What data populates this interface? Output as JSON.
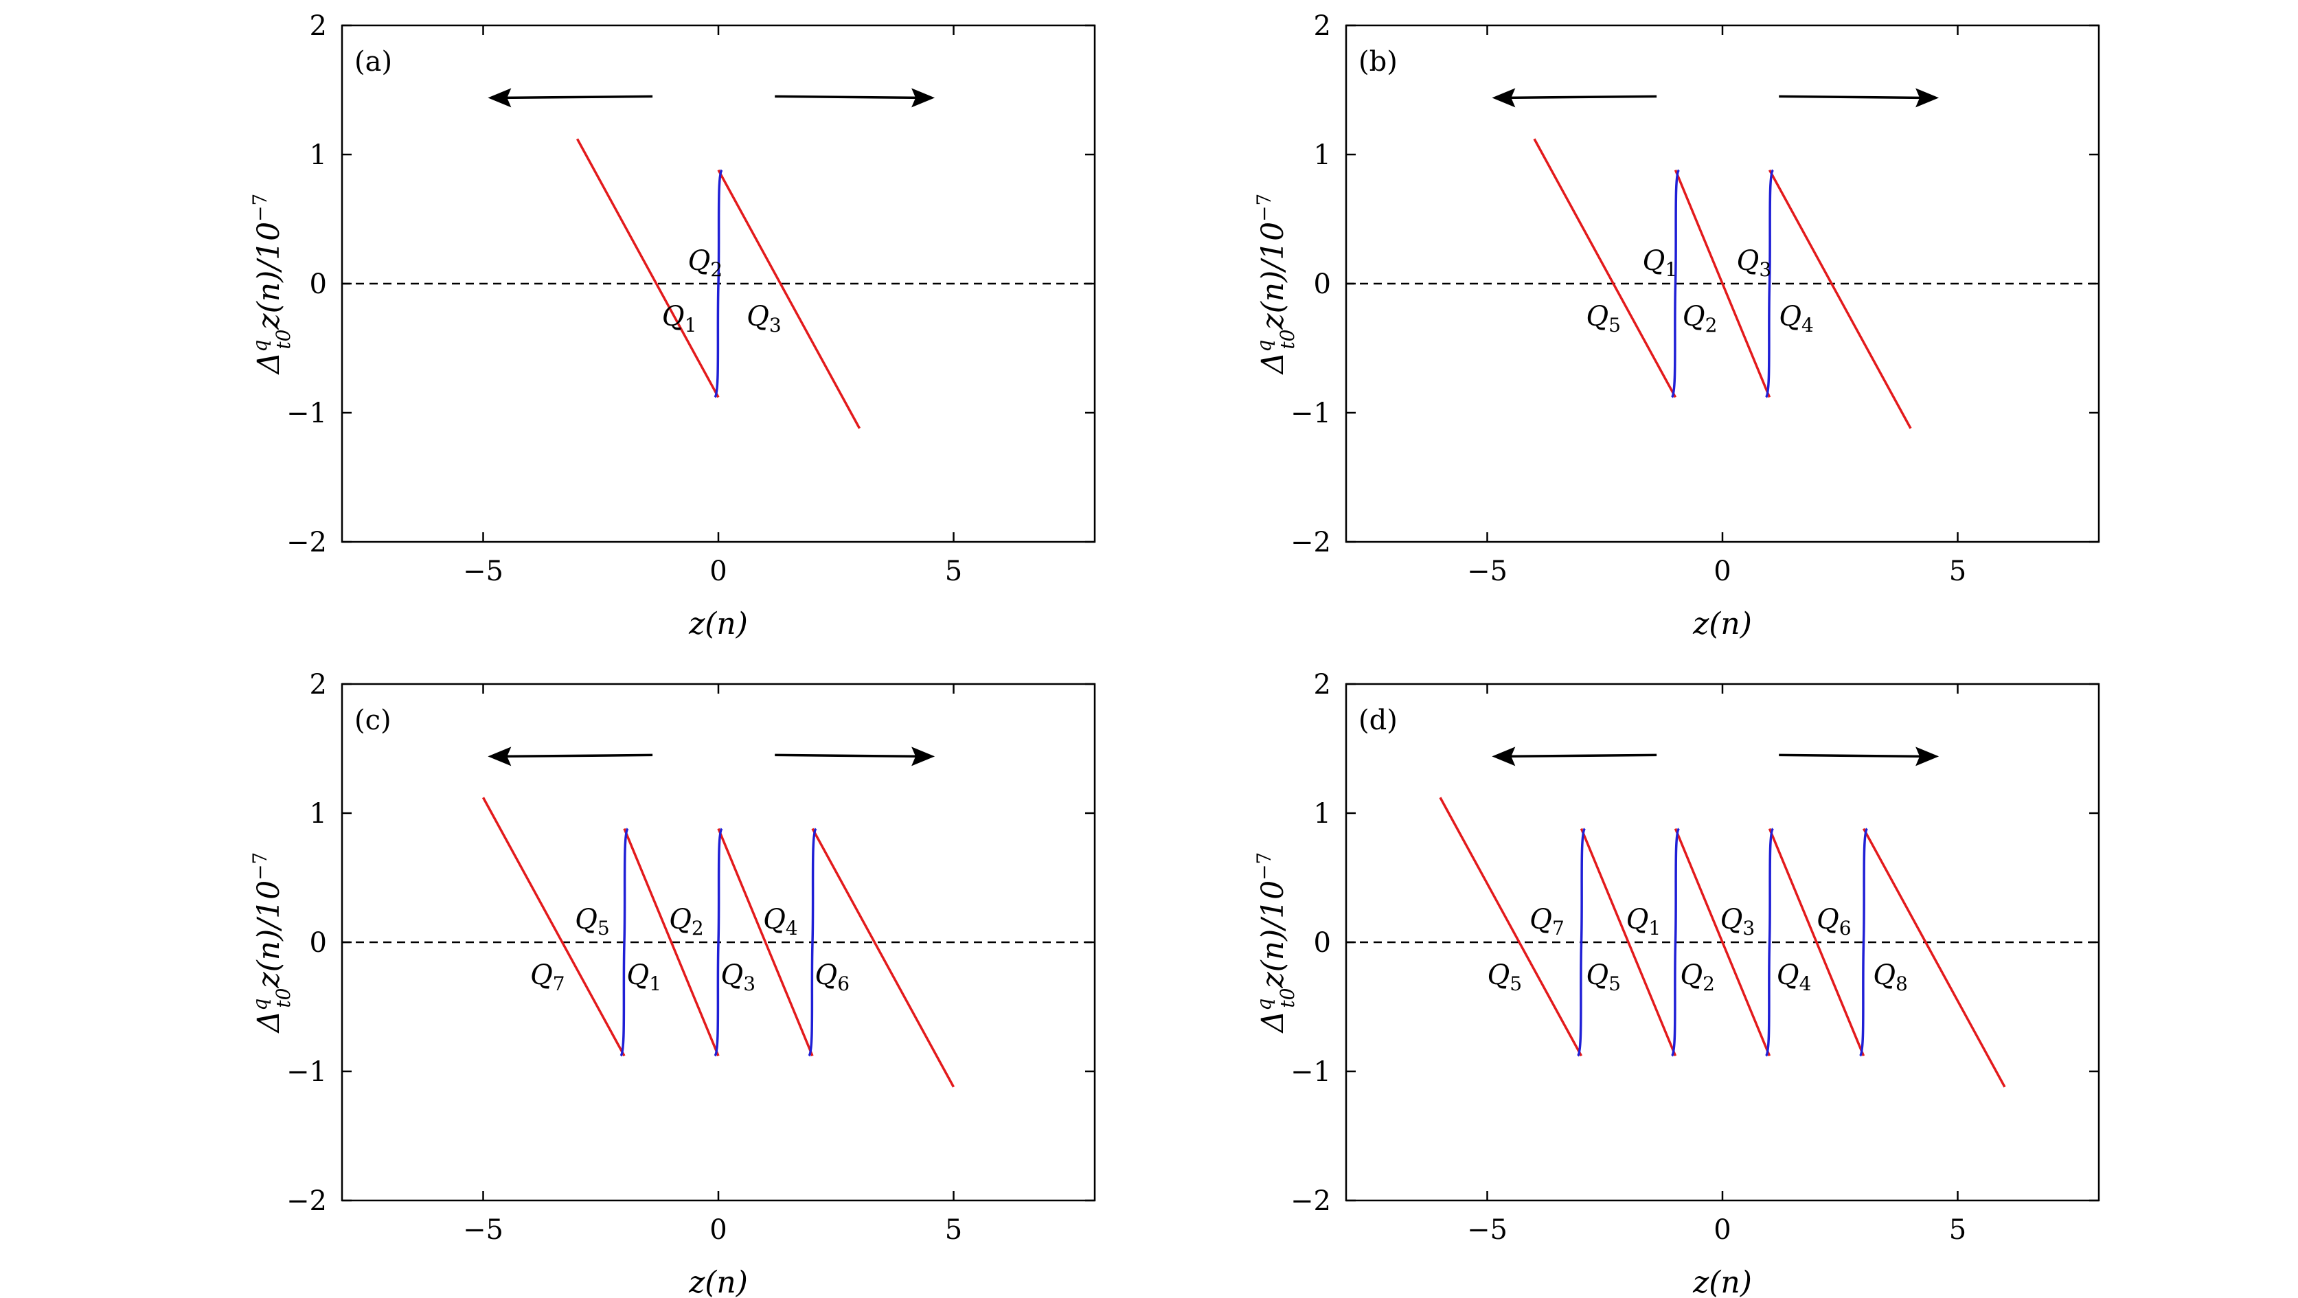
{
  "colors": {
    "red_curve": "#e31a1c",
    "blue_curve": "#1f1fd6",
    "axis": "#000000",
    "zero_line": "#000000"
  },
  "chart_data": [
    {
      "type": "line",
      "panel": "(a)",
      "xlabel": "z(n)",
      "ylabel": "Δ^q_{t0} z(n)/10^{-7}",
      "xlim": [
        -8,
        8
      ],
      "ylim": [
        -2,
        2
      ],
      "xticks": [
        -5,
        0,
        5
      ],
      "xtick_labels": [
        "−5",
        "0",
        "5"
      ],
      "yticks": [
        2,
        1,
        0,
        -1,
        -2
      ],
      "ytick_labels": [
        "2",
        "1",
        "0",
        "−1",
        "−2"
      ],
      "jumps": [
        0
      ],
      "peak": 0.88,
      "slope": -0.667,
      "x_range": [
        -3,
        3
      ],
      "zero_line": "dashed",
      "arrows": [
        "left",
        "right"
      ],
      "labels": [
        {
          "name": "Q",
          "sub": "1",
          "x": -1.2,
          "y": -0.25
        },
        {
          "name": "Q",
          "sub": "2",
          "x": -0.65,
          "y": 0.18
        },
        {
          "name": "Q",
          "sub": "3",
          "x": 0.6,
          "y": -0.25
        }
      ]
    },
    {
      "type": "line",
      "panel": "(b)",
      "xlabel": "z(n)",
      "ylabel": "Δ^q_{t0} z(n)/10^{-7}",
      "xlim": [
        -8,
        8
      ],
      "ylim": [
        -2,
        2
      ],
      "xticks": [
        -5,
        0,
        5
      ],
      "xtick_labels": [
        "−5",
        "0",
        "5"
      ],
      "yticks": [
        2,
        1,
        0,
        -1,
        -2
      ],
      "ytick_labels": [
        "2",
        "1",
        "0",
        "−1",
        "−2"
      ],
      "jumps": [
        -1,
        1
      ],
      "peak": 0.88,
      "slope": -0.667,
      "x_range": [
        -4,
        4
      ],
      "zero_line": "dashed",
      "arrows": [
        "left",
        "right"
      ],
      "labels": [
        {
          "name": "Q",
          "sub": "1",
          "x": -1.7,
          "y": 0.18
        },
        {
          "name": "Q",
          "sub": "2",
          "x": -0.85,
          "y": -0.25
        },
        {
          "name": "Q",
          "sub": "3",
          "x": 0.3,
          "y": 0.18
        },
        {
          "name": "Q",
          "sub": "4",
          "x": 1.2,
          "y": -0.25
        },
        {
          "name": "Q",
          "sub": "5",
          "x": -2.9,
          "y": -0.25
        }
      ]
    },
    {
      "type": "line",
      "panel": "(c)",
      "xlabel": "z(n)",
      "ylabel": "Δ^q_{t0} z(n)/10^{-7}",
      "xlim": [
        -8,
        8
      ],
      "ylim": [
        -2,
        2
      ],
      "xticks": [
        -5,
        0,
        5
      ],
      "xtick_labels": [
        "−5",
        "0",
        "5"
      ],
      "yticks": [
        2,
        1,
        0,
        -1,
        -2
      ],
      "ytick_labels": [
        "2",
        "1",
        "0",
        "−1",
        "−2"
      ],
      "jumps": [
        -2,
        0,
        2
      ],
      "peak": 0.88,
      "slope": -0.667,
      "x_range": [
        -5,
        5
      ],
      "zero_line": "dashed",
      "arrows": [
        "left",
        "right"
      ],
      "labels": [
        {
          "name": "Q",
          "sub": "1",
          "x": -1.95,
          "y": -0.25
        },
        {
          "name": "Q",
          "sub": "2",
          "x": -1.05,
          "y": 0.18
        },
        {
          "name": "Q",
          "sub": "3",
          "x": 0.05,
          "y": -0.25
        },
        {
          "name": "Q",
          "sub": "4",
          "x": 0.95,
          "y": 0.18
        },
        {
          "name": "Q",
          "sub": "5",
          "x": -3.05,
          "y": 0.18
        },
        {
          "name": "Q",
          "sub": "6",
          "x": 2.05,
          "y": -0.25
        },
        {
          "name": "Q",
          "sub": "7",
          "x": -4.0,
          "y": -0.25
        }
      ]
    },
    {
      "type": "line",
      "panel": "(d)",
      "xlabel": "z(n)",
      "ylabel": "Δ^q_{t0} z(n)/10^{-7}",
      "xlim": [
        -8,
        8
      ],
      "ylim": [
        -2,
        2
      ],
      "xticks": [
        -5,
        0,
        5
      ],
      "xtick_labels": [
        "−5",
        "0",
        "5"
      ],
      "yticks": [
        2,
        1,
        0,
        -1,
        -2
      ],
      "ytick_labels": [
        "2",
        "1",
        "0",
        "−1",
        "−2"
      ],
      "jumps": [
        -3,
        -1,
        1,
        3
      ],
      "peak": 0.88,
      "slope": -0.667,
      "x_range": [
        -6,
        6
      ],
      "zero_line": "dashed",
      "arrows": [
        "left",
        "right"
      ],
      "labels": [
        {
          "name": "Q",
          "sub": "1",
          "x": -2.05,
          "y": 0.18
        },
        {
          "name": "Q",
          "sub": "2",
          "x": -0.9,
          "y": -0.25
        },
        {
          "name": "Q",
          "sub": "3",
          "x": -0.05,
          "y": 0.18
        },
        {
          "name": "Q",
          "sub": "4",
          "x": 1.15,
          "y": -0.25
        },
        {
          "name": "Q",
          "sub": "5",
          "x": -2.9,
          "y": -0.25
        },
        {
          "name": "Q",
          "sub": "5",
          "x": -5.0,
          "y": -0.25
        },
        {
          "name": "Q",
          "sub": "6",
          "x": 2.0,
          "y": 0.18
        },
        {
          "name": "Q",
          "sub": "7",
          "x": -4.1,
          "y": 0.18
        },
        {
          "name": "Q",
          "sub": "8",
          "x": 3.2,
          "y": -0.25
        }
      ]
    }
  ]
}
